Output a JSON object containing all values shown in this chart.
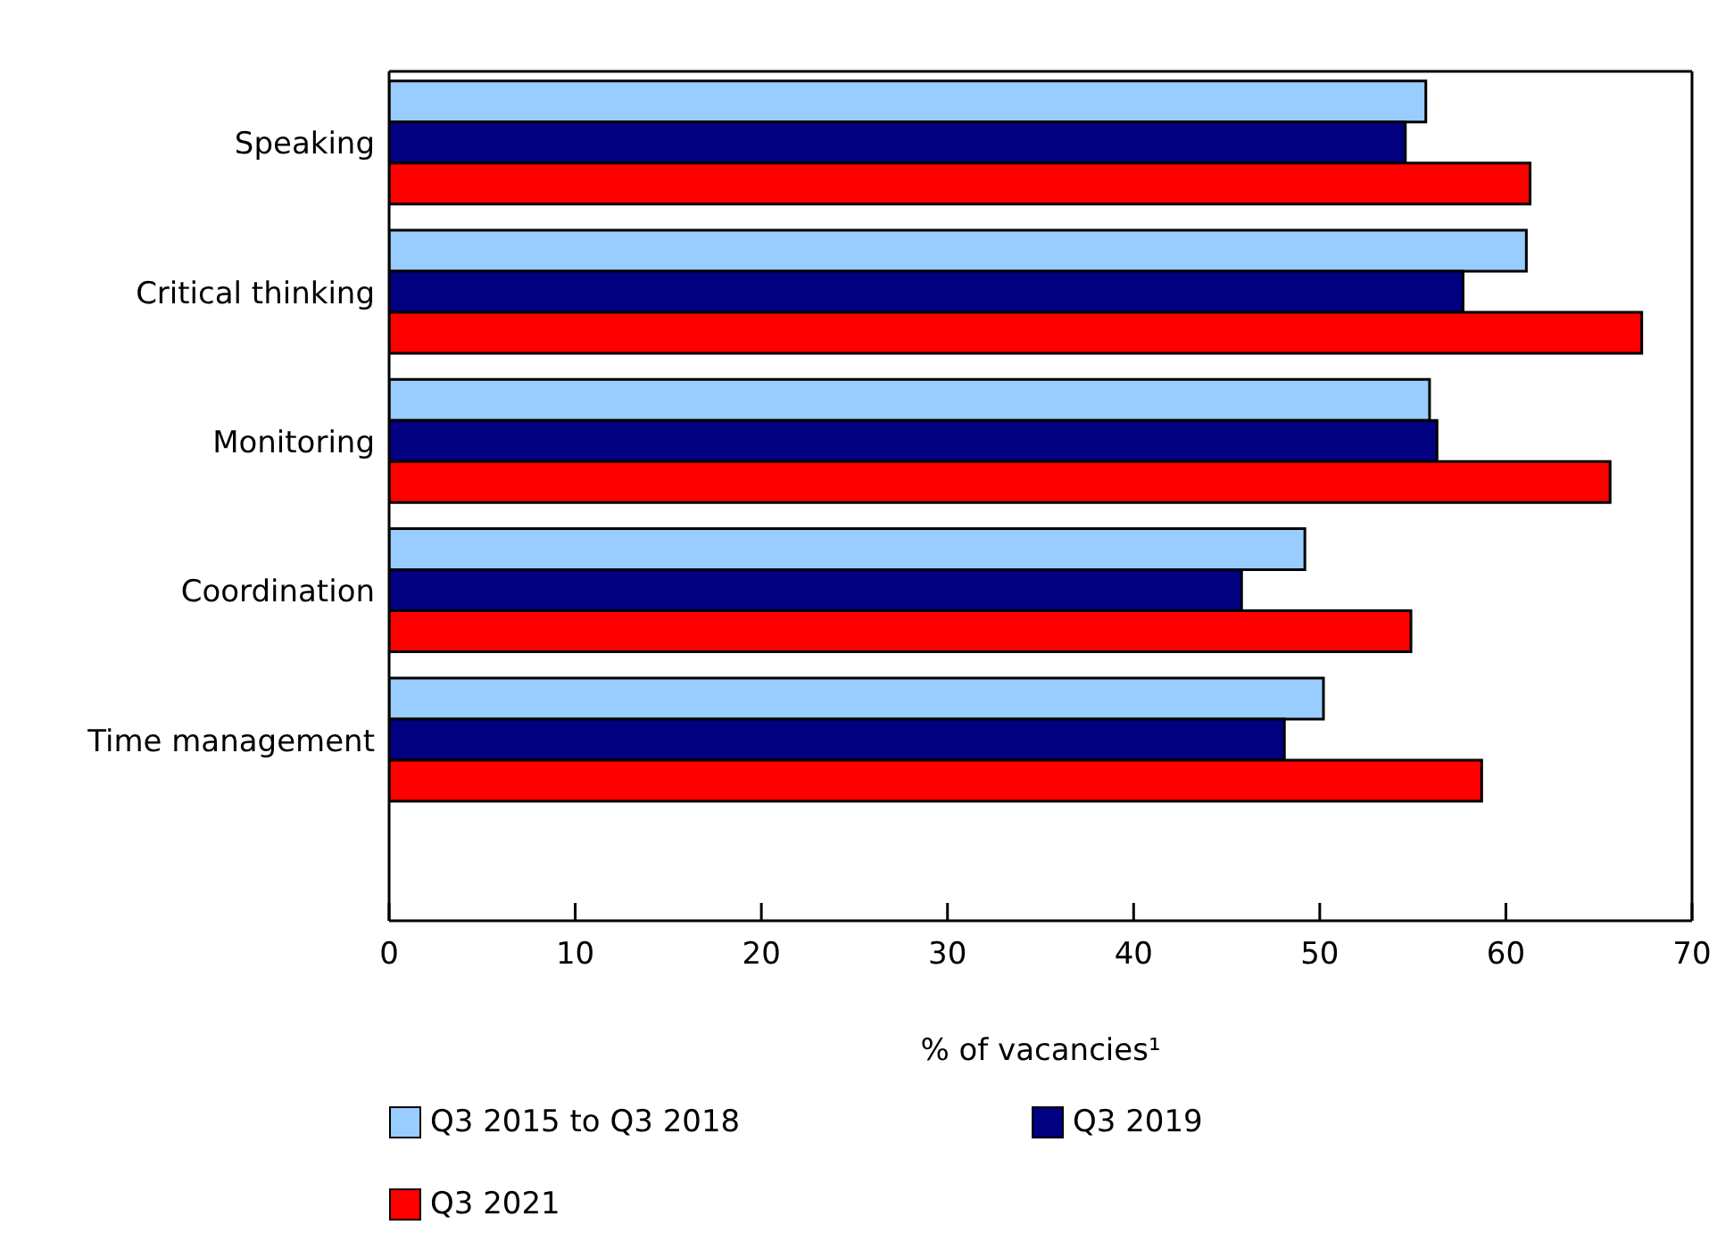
{
  "chart_data": {
    "type": "bar",
    "orientation": "horizontal",
    "xlabel": "% of vacancies¹",
    "categories": [
      "Speaking",
      "Critical thinking",
      "Monitoring",
      "Coordination",
      "Time management"
    ],
    "series": [
      {
        "name": "Q3 2015 to Q3 2018",
        "color": "#99ccff",
        "values": [
          55.7,
          61.1,
          55.9,
          49.2,
          50.2
        ]
      },
      {
        "name": "Q3 2019",
        "color": "#000080",
        "values": [
          54.6,
          57.7,
          56.3,
          45.8,
          48.1
        ]
      },
      {
        "name": "Q3 2021",
        "color": "#ff0000",
        "values": [
          61.3,
          67.3,
          65.6,
          54.9,
          58.7
        ]
      }
    ],
    "xlim": [
      0,
      70
    ],
    "xticks": [
      0,
      10,
      20,
      30,
      40,
      50,
      60,
      70
    ],
    "grid": false,
    "legend": "bottom"
  }
}
